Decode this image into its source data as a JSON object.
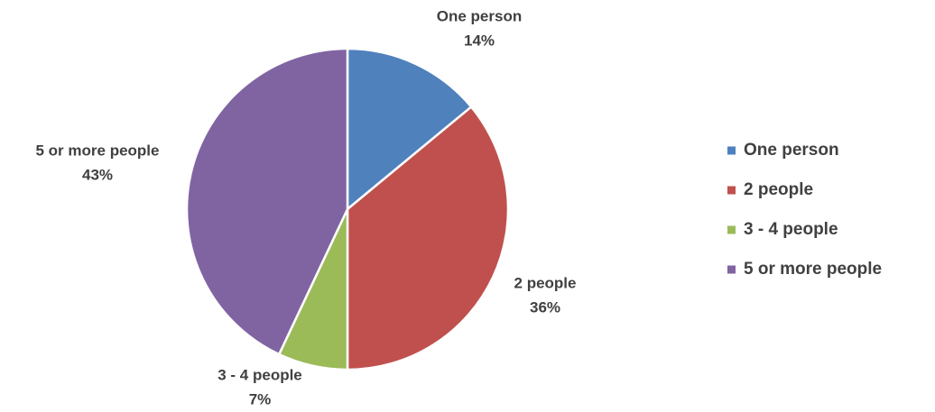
{
  "chart_data": {
    "type": "pie",
    "title": "",
    "categories": [
      "One person",
      "2 people",
      "3 - 4 people",
      "5 or more people"
    ],
    "values": [
      14,
      36,
      7,
      43
    ],
    "value_labels": [
      "14%",
      "36%",
      "7%",
      "43%"
    ],
    "colors": [
      "#4f81bd",
      "#c0504d",
      "#9bbb59",
      "#8064a2"
    ],
    "start_angle_deg": 0,
    "direction": "clockwise",
    "data_labels": "outside-end",
    "legend": {
      "position": "right",
      "entries": [
        "One person",
        "2 people",
        "3 - 4 people",
        "5 or more people"
      ]
    }
  }
}
